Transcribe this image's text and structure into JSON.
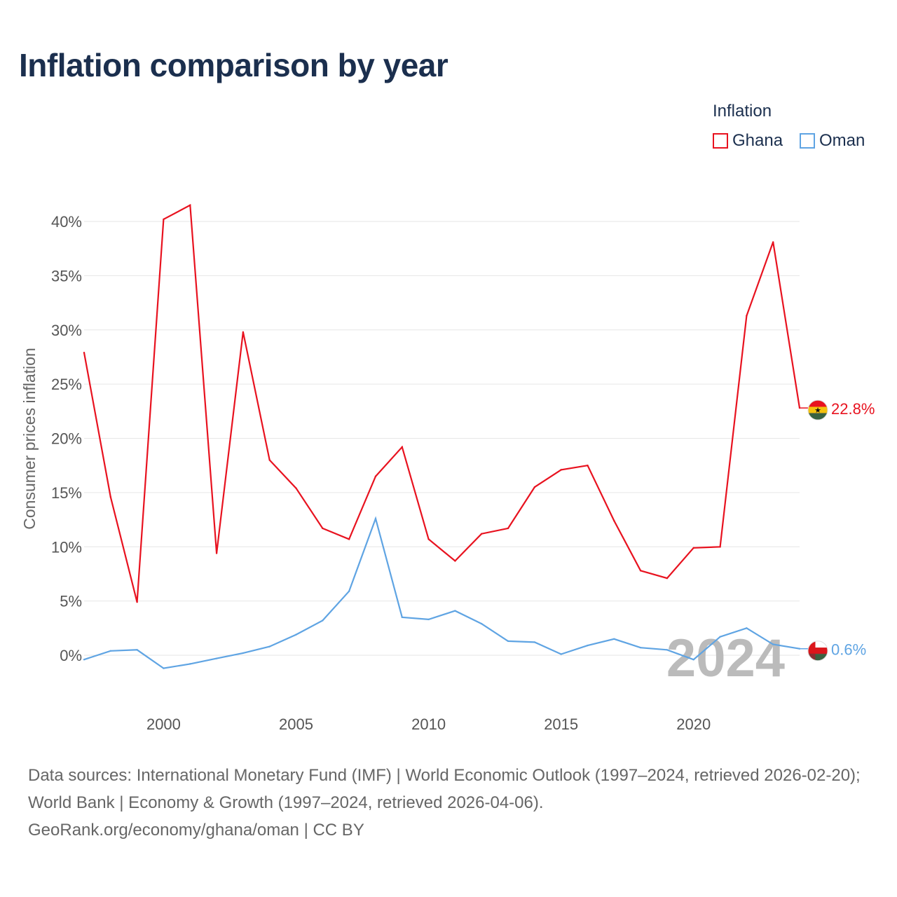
{
  "title": "Inflation comparison by year",
  "legend": {
    "title": "Inflation",
    "items": [
      {
        "label": "Ghana",
        "color": "#e8121f"
      },
      {
        "label": "Oman",
        "color": "#5fa4e3"
      }
    ]
  },
  "chart_data": {
    "type": "line",
    "title": "Inflation comparison by year",
    "xlabel": "",
    "ylabel": "Consumer prices inflation",
    "x": [
      1997,
      1998,
      1999,
      2000,
      2001,
      2002,
      2003,
      2004,
      2005,
      2006,
      2007,
      2008,
      2009,
      2010,
      2011,
      2012,
      2013,
      2014,
      2015,
      2016,
      2017,
      2018,
      2019,
      2020,
      2021,
      2022,
      2023,
      2024
    ],
    "xlim": [
      1997,
      2024
    ],
    "ylim": [
      -3.5,
      43
    ],
    "xticks": [
      2000,
      2005,
      2010,
      2015,
      2020
    ],
    "yticks": [
      0,
      5,
      10,
      15,
      20,
      25,
      30,
      35,
      40
    ],
    "ytick_labels": [
      "0%",
      "5%",
      "10%",
      "15%",
      "20%",
      "25%",
      "30%",
      "35%",
      "40%"
    ],
    "grid": true,
    "series": [
      {
        "name": "Ghana",
        "color": "#e8121f",
        "values": [
          27.9,
          14.6,
          4.9,
          40.2,
          41.5,
          9.4,
          29.8,
          18.0,
          15.4,
          11.7,
          10.7,
          16.5,
          19.2,
          10.7,
          8.7,
          11.2,
          11.7,
          15.5,
          17.1,
          17.5,
          12.4,
          7.8,
          7.1,
          9.9,
          10.0,
          31.3,
          38.1,
          22.8
        ],
        "end_label": "22.8%",
        "flag_icon": "ghana-flag-icon"
      },
      {
        "name": "Oman",
        "color": "#5fa4e3",
        "values": [
          -0.4,
          0.4,
          0.5,
          -1.2,
          -0.8,
          -0.3,
          0.2,
          0.8,
          1.9,
          3.2,
          5.9,
          12.6,
          3.5,
          3.3,
          4.1,
          2.9,
          1.3,
          1.2,
          0.1,
          0.9,
          1.5,
          0.7,
          0.5,
          -0.4,
          1.7,
          2.5,
          1.0,
          0.6
        ],
        "end_label": "0.6%",
        "flag_icon": "oman-flag-icon"
      }
    ],
    "annotations": [
      {
        "text": "2024",
        "role": "current-year-overlay"
      }
    ]
  },
  "footer": {
    "sources": "Data sources: International Monetary Fund (IMF) | World Economic Outlook (1997–2024, retrieved 2026-02-20); World Bank | Economy & Growth (1997–2024, retrieved 2026-04-06).",
    "credit": "GeoRank.org/economy/ghana/oman | CC BY"
  }
}
